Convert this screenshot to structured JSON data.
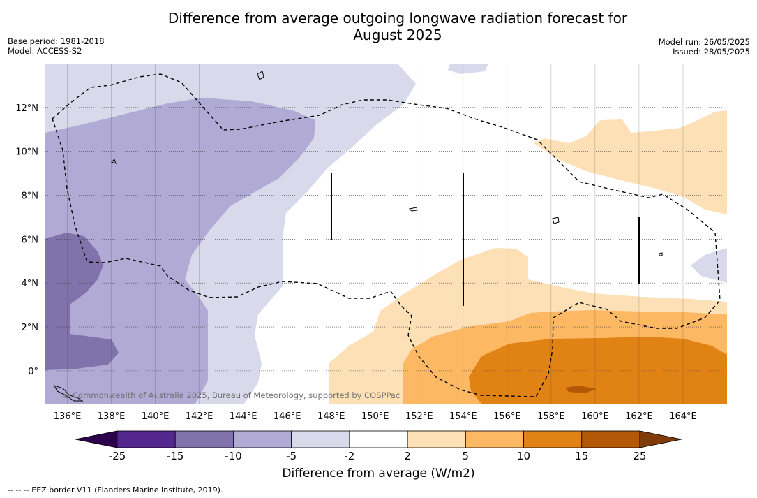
{
  "title_line1": "Difference from average outgoing longwave radiation forecast for",
  "title_line2": "August 2025",
  "meta": {
    "base_period": "Base period: 1981-2018",
    "model": "Model: ACCESS-S2",
    "model_run": "Model run: 26/05/2025",
    "issued": "Issued: 28/05/2025"
  },
  "copyright": "© Commonwealth of Australia 2025, Bureau of Meteorology, supported by COSPPac",
  "eez_note": "-- -- -- EEZ border V11 (Flanders Marine Institute, 2019).",
  "chart_data": {
    "type": "heatmap",
    "xlabel": "",
    "ylabel": "",
    "x_ticks": [
      "136°E",
      "138°E",
      "140°E",
      "142°E",
      "144°E",
      "146°E",
      "148°E",
      "150°E",
      "152°E",
      "154°E",
      "156°E",
      "158°E",
      "160°E",
      "162°E",
      "164°E"
    ],
    "x_tick_values": [
      136,
      138,
      140,
      142,
      144,
      146,
      148,
      150,
      152,
      154,
      156,
      158,
      160,
      162,
      164
    ],
    "y_ticks": [
      "12°N",
      "10°N",
      "8°N",
      "6°N",
      "4°N",
      "2°N",
      "0°"
    ],
    "y_tick_values": [
      12,
      10,
      8,
      6,
      4,
      2,
      0
    ],
    "xlim": [
      135,
      166
    ],
    "ylim": [
      -1.5,
      14
    ],
    "grid": true,
    "colorbar": {
      "label": "Difference from average (W/m2)",
      "ticks": [
        "-25",
        "-15",
        "-10",
        "-5",
        "-2",
        "2",
        "5",
        "10",
        "15",
        "25"
      ],
      "tick_values": [
        -25,
        -15,
        -10,
        -5,
        -2,
        2,
        5,
        10,
        15,
        25
      ],
      "colors": [
        "#54278f",
        "#8073ac",
        "#b1aad4",
        "#d8d9ea",
        "#ffffff",
        "#fee0b6",
        "#fdb863",
        "#e08214",
        "#b35806"
      ],
      "under_color": "#2d004b",
      "over_color": "#7f3b08",
      "extend": "both"
    }
  }
}
